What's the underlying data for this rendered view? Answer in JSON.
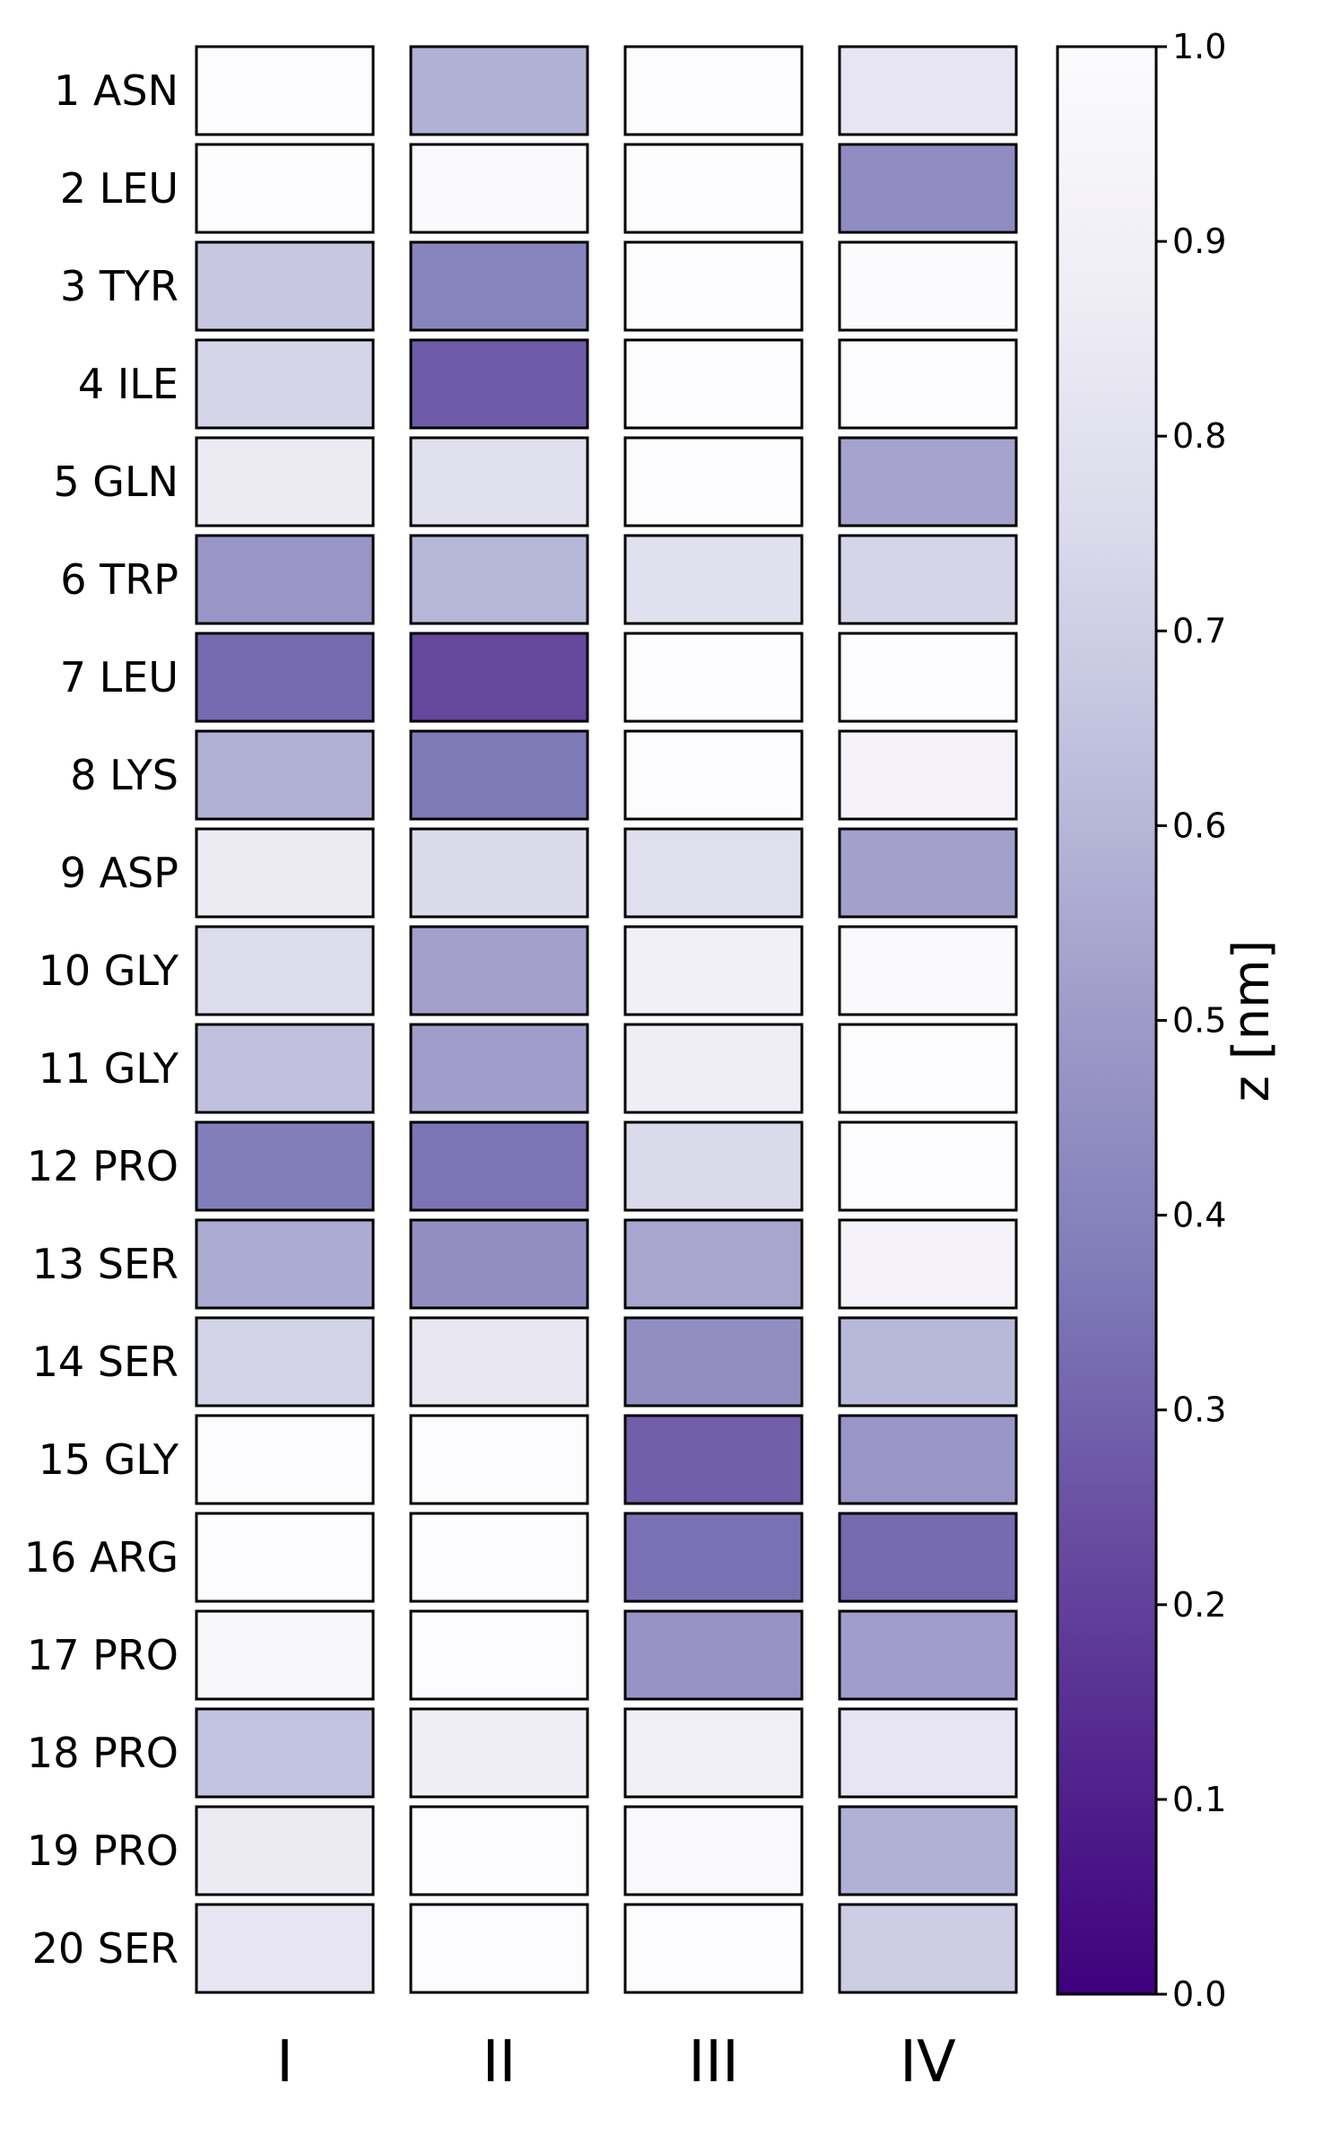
{
  "chart_data": {
    "type": "heatmap",
    "title": "",
    "columns": [
      "I",
      "II",
      "III",
      "IV"
    ],
    "rows": [
      "1 ASN",
      "2 LEU",
      "3 TYR",
      "4 ILE",
      "5 GLN",
      "6 TRP",
      "7 LEU",
      "8 LYS",
      "9 ASP",
      "10 GLY",
      "11 GLY",
      "12 PRO",
      "13 SER",
      "14 SER",
      "15 GLY",
      "16 ARG",
      "17 PRO",
      "18 PRO",
      "19 PRO",
      "20 SER"
    ],
    "values": [
      [
        1.0,
        0.58,
        1.0,
        0.82
      ],
      [
        1.0,
        0.98,
        1.0,
        0.44
      ],
      [
        0.67,
        0.41,
        1.0,
        0.99
      ],
      [
        0.73,
        0.28,
        1.0,
        1.0
      ],
      [
        0.86,
        0.78,
        1.0,
        0.53
      ],
      [
        0.48,
        0.6,
        0.79,
        0.73
      ],
      [
        0.32,
        0.22,
        1.0,
        1.0
      ],
      [
        0.58,
        0.37,
        1.0,
        0.93
      ],
      [
        0.86,
        0.75,
        0.78,
        0.52
      ],
      [
        0.76,
        0.52,
        0.9,
        0.97
      ],
      [
        0.64,
        0.51,
        0.88,
        1.0
      ],
      [
        0.38,
        0.35,
        0.75,
        1.0
      ],
      [
        0.56,
        0.45,
        0.54,
        0.92
      ],
      [
        0.72,
        0.84,
        0.45,
        0.61
      ],
      [
        1.0,
        1.0,
        0.29,
        0.48
      ],
      [
        1.0,
        1.0,
        0.34,
        0.32
      ],
      [
        0.96,
        1.0,
        0.47,
        0.51
      ],
      [
        0.65,
        0.88,
        0.89,
        0.82
      ],
      [
        0.86,
        1.0,
        0.97,
        0.58
      ],
      [
        0.82,
        1.0,
        1.0,
        0.69
      ]
    ],
    "colorbar": {
      "label": "z [nm]",
      "min": 0.0,
      "max": 1.0,
      "ticks": [
        "0.0",
        "0.1",
        "0.2",
        "0.3",
        "0.4",
        "0.5",
        "0.6",
        "0.7",
        "0.8",
        "0.9",
        "1.0"
      ],
      "colormap": "Purples_r",
      "colors": [
        "#3f007d",
        "#54278f",
        "#6a51a3",
        "#807dba",
        "#9e9ac8",
        "#bcbddc",
        "#dadaeb",
        "#efedf5",
        "#fcfbfd"
      ]
    },
    "grid": false,
    "legend": "none"
  }
}
